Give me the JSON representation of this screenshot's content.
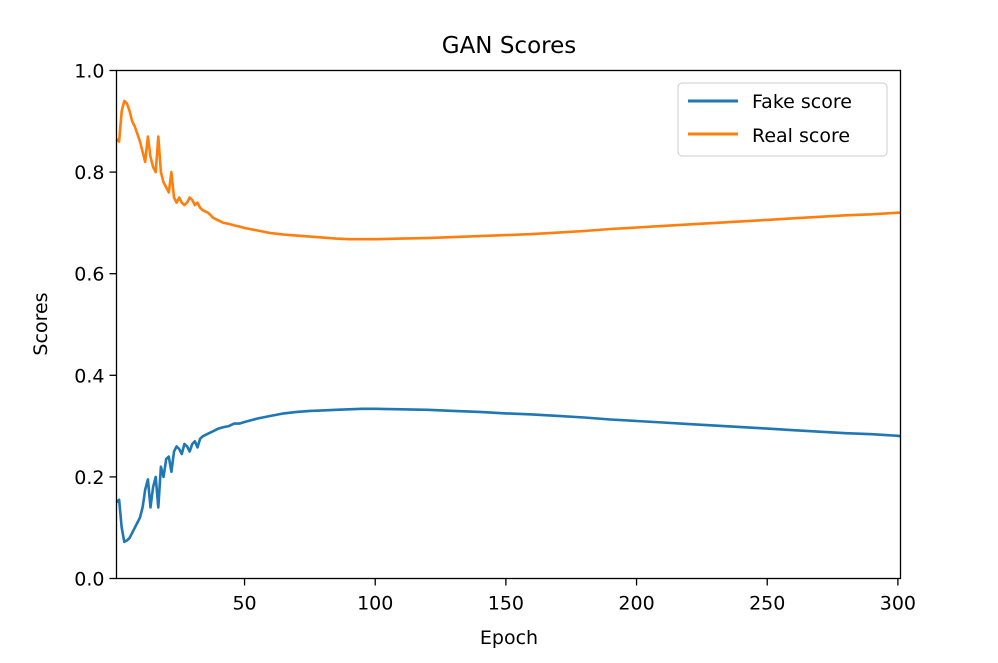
{
  "chart_data": {
    "type": "line",
    "title": "GAN Scores",
    "xlabel": "Epoch",
    "ylabel": "Scores",
    "xlim": [
      1,
      301
    ],
    "ylim": [
      0.0,
      1.0
    ],
    "xticks": [
      50,
      100,
      150,
      200,
      250,
      300
    ],
    "xtick_labels": [
      "50",
      "100",
      "150",
      "200",
      "250",
      "300"
    ],
    "yticks": [
      0.0,
      0.2,
      0.4,
      0.6,
      0.8,
      1.0
    ],
    "ytick_labels": [
      "0.0",
      "0.2",
      "0.4",
      "0.6",
      "0.8",
      "1.0"
    ],
    "grid": false,
    "legend_position": "top-right",
    "series": [
      {
        "name": "Fake score",
        "color": "#1f77b4",
        "x": [
          1,
          2,
          3,
          4,
          5,
          6,
          7,
          8,
          9,
          10,
          11,
          12,
          13,
          14,
          15,
          16,
          17,
          18,
          19,
          20,
          21,
          22,
          23,
          24,
          25,
          26,
          27,
          28,
          29,
          30,
          31,
          32,
          33,
          34,
          36,
          38,
          40,
          42,
          44,
          46,
          48,
          50,
          55,
          60,
          65,
          70,
          75,
          80,
          85,
          90,
          95,
          100,
          110,
          120,
          130,
          140,
          150,
          160,
          170,
          180,
          190,
          200,
          210,
          220,
          230,
          240,
          250,
          260,
          270,
          280,
          290,
          300,
          301
        ],
        "y": [
          0.15,
          0.155,
          0.1,
          0.072,
          0.075,
          0.08,
          0.09,
          0.1,
          0.11,
          0.12,
          0.14,
          0.175,
          0.195,
          0.14,
          0.18,
          0.2,
          0.14,
          0.22,
          0.2,
          0.235,
          0.24,
          0.21,
          0.25,
          0.26,
          0.255,
          0.245,
          0.265,
          0.26,
          0.25,
          0.265,
          0.27,
          0.258,
          0.275,
          0.28,
          0.285,
          0.29,
          0.295,
          0.298,
          0.3,
          0.305,
          0.305,
          0.308,
          0.315,
          0.32,
          0.325,
          0.328,
          0.33,
          0.331,
          0.332,
          0.333,
          0.334,
          0.334,
          0.333,
          0.332,
          0.33,
          0.328,
          0.325,
          0.323,
          0.32,
          0.317,
          0.313,
          0.31,
          0.307,
          0.304,
          0.301,
          0.298,
          0.295,
          0.292,
          0.289,
          0.286,
          0.284,
          0.281,
          0.28
        ]
      },
      {
        "name": "Real score",
        "color": "#ff7f0e",
        "x": [
          1,
          2,
          3,
          4,
          5,
          6,
          7,
          8,
          9,
          10,
          11,
          12,
          13,
          14,
          15,
          16,
          17,
          18,
          19,
          20,
          21,
          22,
          23,
          24,
          25,
          26,
          27,
          28,
          29,
          30,
          31,
          32,
          33,
          34,
          36,
          38,
          40,
          42,
          44,
          46,
          48,
          50,
          55,
          60,
          65,
          70,
          75,
          80,
          85,
          90,
          95,
          100,
          110,
          120,
          130,
          140,
          150,
          160,
          170,
          180,
          190,
          200,
          210,
          220,
          230,
          240,
          250,
          260,
          270,
          280,
          290,
          300,
          301
        ],
        "y": [
          0.865,
          0.86,
          0.92,
          0.94,
          0.935,
          0.92,
          0.9,
          0.89,
          0.875,
          0.86,
          0.84,
          0.82,
          0.87,
          0.83,
          0.81,
          0.8,
          0.87,
          0.8,
          0.78,
          0.77,
          0.76,
          0.8,
          0.75,
          0.74,
          0.75,
          0.74,
          0.735,
          0.74,
          0.75,
          0.745,
          0.735,
          0.74,
          0.73,
          0.725,
          0.72,
          0.71,
          0.705,
          0.7,
          0.698,
          0.695,
          0.693,
          0.69,
          0.685,
          0.68,
          0.677,
          0.675,
          0.673,
          0.671,
          0.669,
          0.668,
          0.668,
          0.668,
          0.669,
          0.67,
          0.672,
          0.674,
          0.676,
          0.678,
          0.681,
          0.684,
          0.688,
          0.691,
          0.694,
          0.697,
          0.7,
          0.703,
          0.706,
          0.709,
          0.712,
          0.715,
          0.717,
          0.72,
          0.72
        ]
      }
    ]
  }
}
